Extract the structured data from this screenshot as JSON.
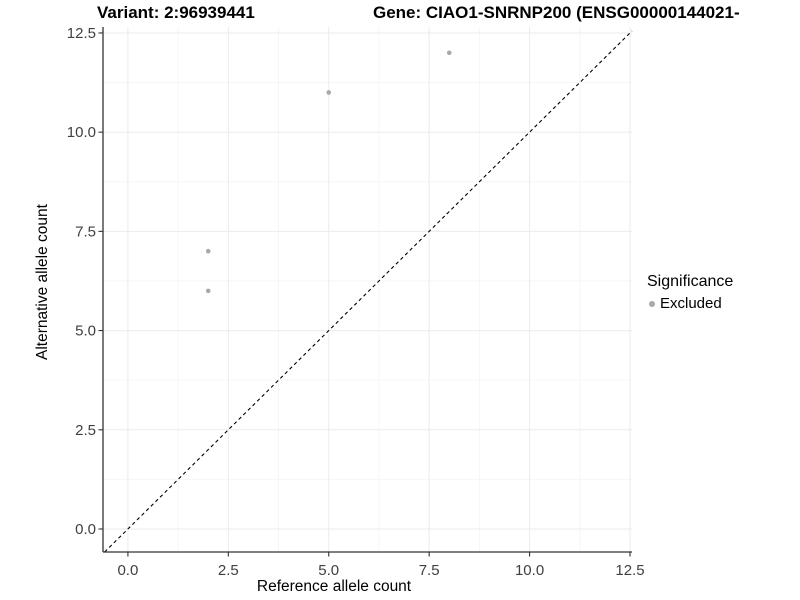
{
  "chart_data": {
    "type": "scatter",
    "title_left": "Variant: 2:96939441",
    "title_right": "Gene: CIAO1-SNRNP200 (ENSG00000144021-",
    "xlabel": "Reference allele count",
    "ylabel": "Alternative allele count",
    "xlim": [
      -0.62,
      12.55
    ],
    "ylim": [
      -0.58,
      12.65
    ],
    "x_ticks": [
      0,
      2.5,
      5,
      7.5,
      10,
      12.5
    ],
    "y_ticks": [
      0,
      2.5,
      5,
      7.5,
      10,
      12.5
    ],
    "x_minor_ticks": [
      1.25,
      3.75,
      6.25,
      8.75,
      11.25
    ],
    "y_minor_ticks": [
      1.25,
      3.75,
      6.25,
      8.75,
      11.25
    ],
    "grid": true,
    "points": [
      {
        "x": 2,
        "y": 6,
        "significance": "Excluded"
      },
      {
        "x": 2,
        "y": 7,
        "significance": "Excluded"
      },
      {
        "x": 5,
        "y": 11,
        "significance": "Excluded"
      },
      {
        "x": 8,
        "y": 12,
        "significance": "Excluded"
      }
    ],
    "reference_line": {
      "slope": 1,
      "intercept": 0,
      "style": "dashed"
    },
    "legend": {
      "title": "Significance",
      "position": "right",
      "items": [
        {
          "label": "Excluded",
          "color": "#a9a9a9"
        }
      ]
    },
    "colors": {
      "point": "#a9a9a9",
      "grid_major": "#ebebeb",
      "grid_minor": "#f6f6f6",
      "axis_line": "#333333",
      "tick_mark": "#333333",
      "tick_text": "#404040",
      "axis_title_text": "#000000",
      "reference_line": "#000000",
      "background": "#ffffff"
    }
  }
}
